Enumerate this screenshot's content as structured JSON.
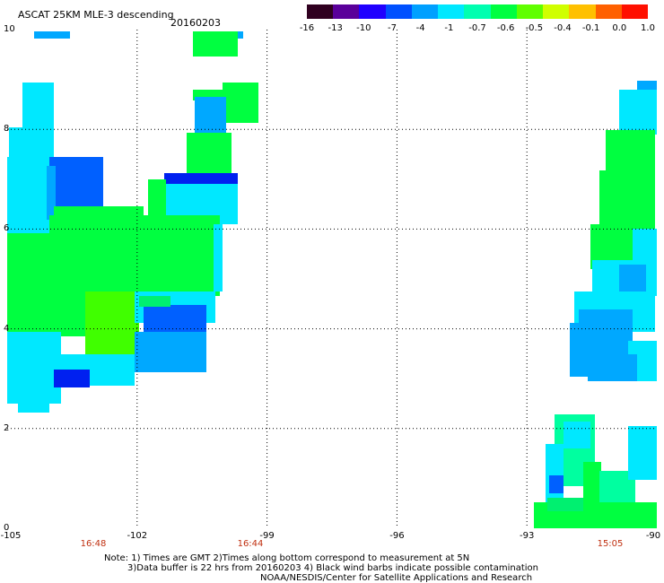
{
  "header": {
    "title": "ASCAT 25KM MLE-3 descending",
    "date": "20160203"
  },
  "colorbar": {
    "ticks": [
      "-16",
      "-13",
      "-10",
      "-7",
      "-4",
      "-1",
      "-0.7",
      "-0.6",
      "-0.5",
      "-0.4",
      "-0.1",
      "0.0",
      "1.0"
    ],
    "colors": [
      "#300020",
      "#5a009a",
      "#2000ff",
      "#0050ff",
      "#00a0ff",
      "#00e8ff",
      "#00ffb0",
      "#00ff40",
      "#60ff00",
      "#d0ff00",
      "#ffc000",
      "#ff6000",
      "#ff1000"
    ]
  },
  "map": {
    "lon_ticks": [
      "-105",
      "-102",
      "-99",
      "-96",
      "-93",
      "-90"
    ],
    "lat_ticks": [
      "0",
      "2",
      "4",
      "6",
      "8",
      "10"
    ],
    "lon_range": [
      -105,
      -90
    ],
    "lat_range": [
      0,
      10
    ]
  },
  "pass_times": [
    "16:48",
    "16:44",
    "15:05"
  ],
  "notes": {
    "line1": "Note: 1) Times are GMT 2)Times along bottom correspond to measurement at 5N",
    "line2": "3)Data buffer is 22 hrs from 20160203 4) Black wind barbs indicate possible contamination",
    "line3": "NOAA/NESDIS/Center for Satellite Applications and Research"
  }
}
